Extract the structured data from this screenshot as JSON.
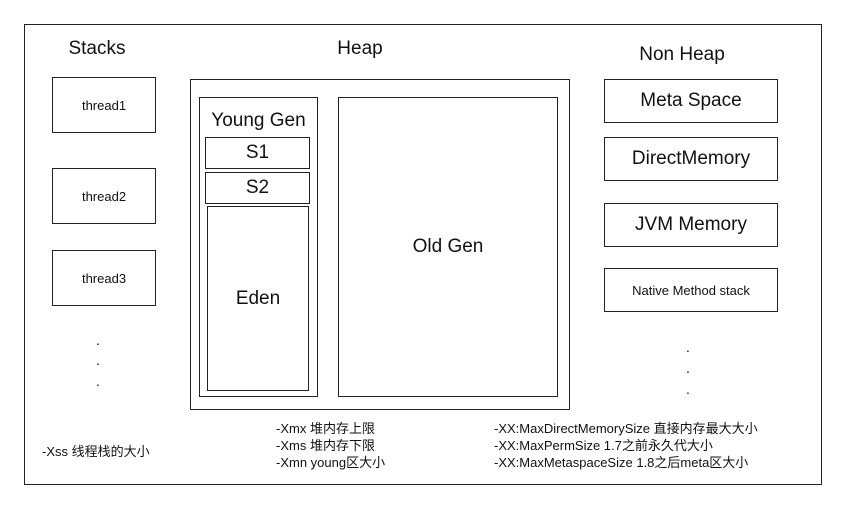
{
  "stacks": {
    "title": "Stacks",
    "threads": [
      "thread1",
      "thread2",
      "thread3"
    ],
    "ellipsis": [
      ".",
      ".",
      "."
    ],
    "note": "-Xss  线程栈的大小"
  },
  "heap": {
    "title": "Heap",
    "young_gen": "Young Gen",
    "s1": "S1",
    "s2": "S2",
    "eden": "Eden",
    "old_gen": "Old Gen",
    "notes": [
      "-Xmx  堆内存上限",
      "-Xms 堆内存下限",
      "-Xmn young区大小"
    ]
  },
  "non_heap": {
    "title": "Non Heap",
    "items": [
      "Meta Space",
      "DirectMemory",
      "JVM Memory",
      "Native Method stack"
    ],
    "ellipsis": [
      ".",
      ".",
      "."
    ],
    "notes": [
      "-XX:MaxDirectMemorySize 直接内存最大大小",
      "-XX:MaxPermSize  1.7之前永久代大小",
      "-XX:MaxMetaspaceSize 1.8之后meta区大小"
    ]
  }
}
